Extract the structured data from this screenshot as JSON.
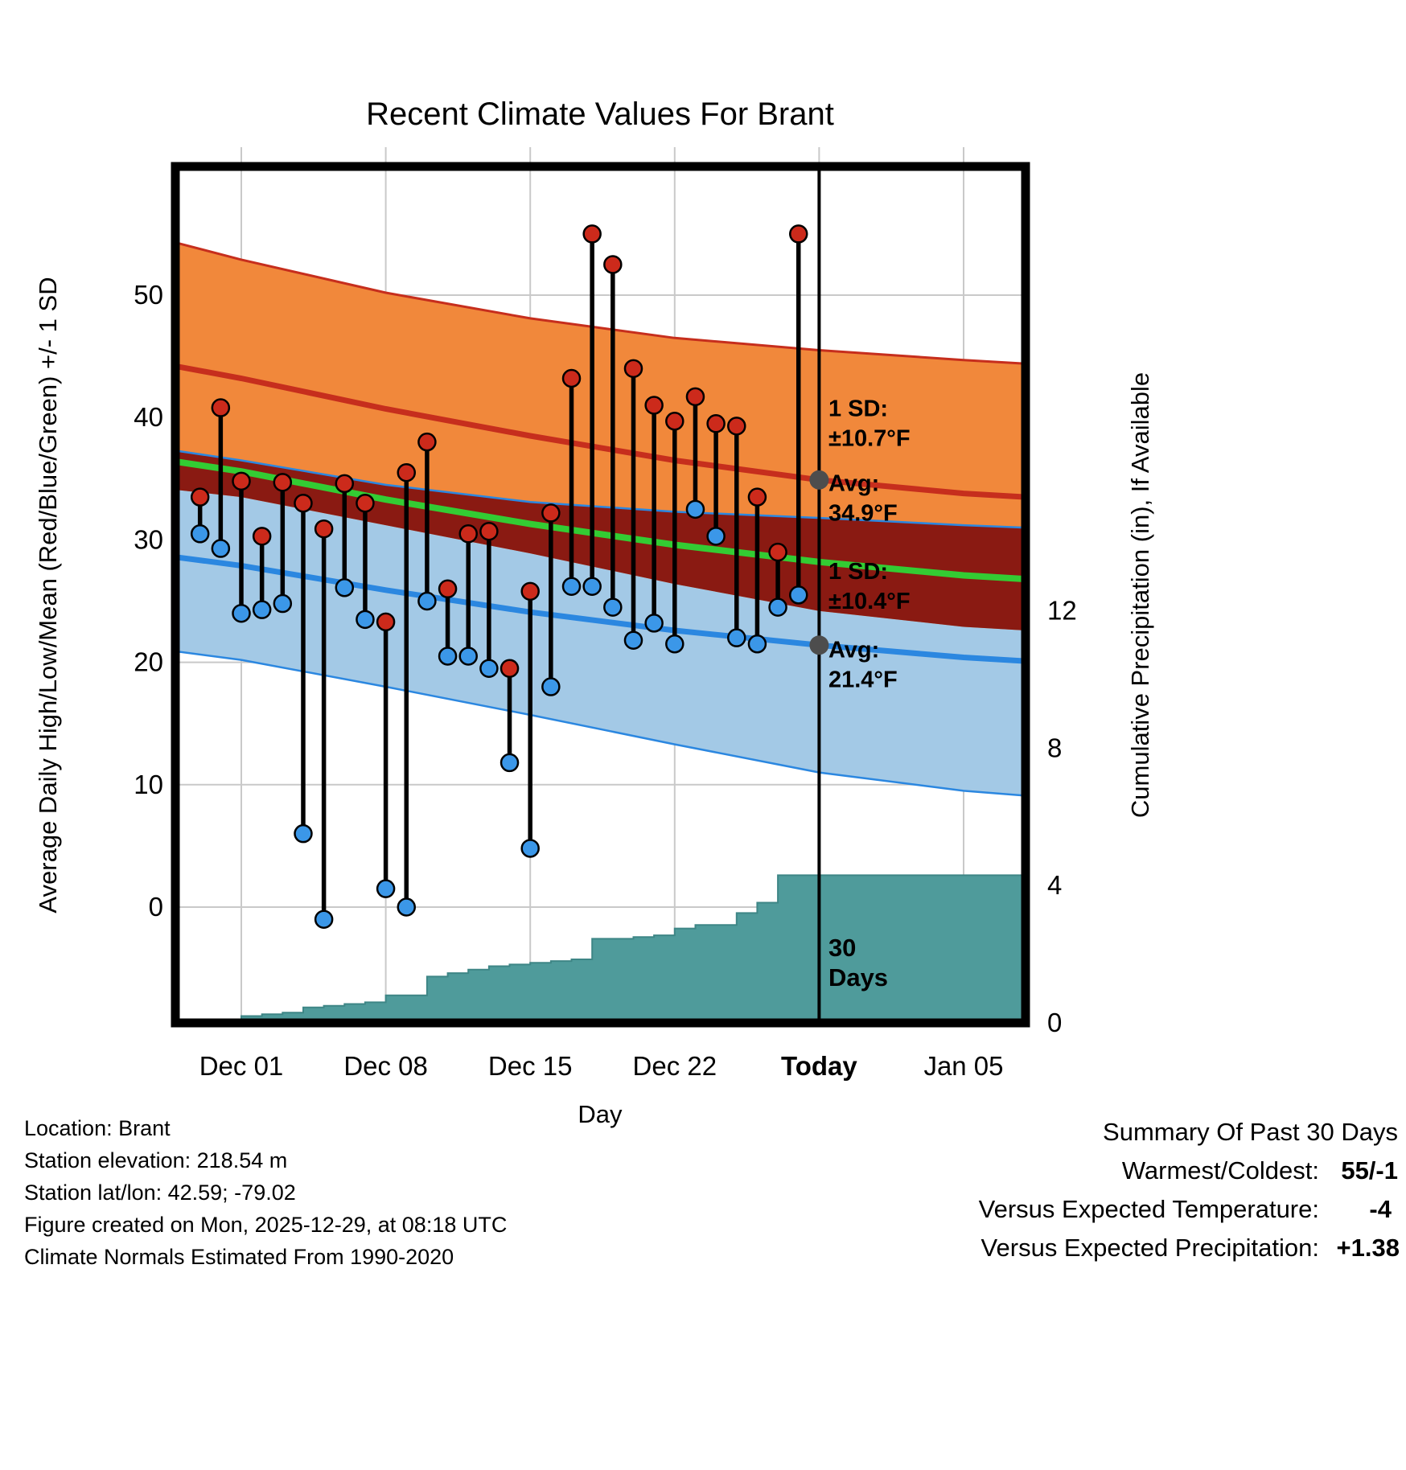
{
  "title": "Recent Climate Values For Brant",
  "axes": {
    "x_label": "Day",
    "left_label": "Average Daily High/Low/Mean (Red/Blue/Green) +/- 1 SD",
    "right_label": "Cumulative Precipitation (in), If Available",
    "x_ticks": [
      {
        "day": 0,
        "label": "Dec 01",
        "bold": false
      },
      {
        "day": 7,
        "label": "Dec 08",
        "bold": false
      },
      {
        "day": 14,
        "label": "Dec 15",
        "bold": false
      },
      {
        "day": 21,
        "label": "Dec 22",
        "bold": false
      },
      {
        "day": 28,
        "label": "Today",
        "bold": true
      },
      {
        "day": 35,
        "label": "Jan 05",
        "bold": false
      }
    ],
    "y_ticks_left": [
      0,
      10,
      20,
      30,
      40,
      50
    ],
    "y_ticks_right": [
      0,
      4,
      8,
      12
    ],
    "x_domain_days": [
      -3.2,
      38
    ],
    "temp_ylim": [
      -9.5,
      60.5
    ],
    "precip_ylim": [
      0,
      24.9
    ],
    "grid": true
  },
  "colors": {
    "high_band": "#F1883B",
    "high_line": "#C62E1D",
    "low_band": "#A3C9E6",
    "low_line": "#2B87E0",
    "overlap_band": "#8A1A12",
    "mean_line": "#33CC33",
    "precip_fill": "#4F9B9B",
    "precip_edge": "#3E8686",
    "high_dot": "#CC2A1B",
    "low_dot": "#3B97E8",
    "stem": "#000000",
    "grid": "#C9C9C9",
    "today_line": "#000000",
    "marker_gray": "#4D4D4D",
    "annotation_gray": "#7B7B7B",
    "frame": "#000000"
  },
  "chart_data": [
    {
      "type": "scatter",
      "name": "daily_high_low_observations",
      "x_unit": "days_from_Dec01",
      "note": "vertical black stems, red dot = daily high (F), blue dot = daily low (F)",
      "points": [
        {
          "day": -2,
          "high": 33.5,
          "low": 30.5
        },
        {
          "day": -1,
          "high": 40.8,
          "low": 29.3
        },
        {
          "day": 0,
          "high": 34.8,
          "low": 24.0
        },
        {
          "day": 1,
          "high": 30.3,
          "low": 24.3
        },
        {
          "day": 2,
          "high": 34.7,
          "low": 24.8
        },
        {
          "day": 3,
          "high": 33.0,
          "low": 6.0
        },
        {
          "day": 4,
          "high": 30.9,
          "low": -1.0
        },
        {
          "day": 5,
          "high": 34.6,
          "low": 26.1
        },
        {
          "day": 6,
          "high": 33.0,
          "low": 23.5
        },
        {
          "day": 7,
          "high": 23.3,
          "low": 1.5
        },
        {
          "day": 8,
          "high": 35.5,
          "low": 0.0
        },
        {
          "day": 9,
          "high": 38.0,
          "low": 25.0
        },
        {
          "day": 10,
          "high": 26.0,
          "low": 20.5
        },
        {
          "day": 11,
          "high": 30.5,
          "low": 20.5
        },
        {
          "day": 12,
          "high": 30.7,
          "low": 19.5
        },
        {
          "day": 13,
          "high": 19.5,
          "low": 11.8
        },
        {
          "day": 14,
          "high": 25.8,
          "low": 4.8
        },
        {
          "day": 15,
          "high": 32.2,
          "low": 18.0
        },
        {
          "day": 16,
          "high": 43.2,
          "low": 26.2
        },
        {
          "day": 17,
          "high": 55.0,
          "low": 26.2
        },
        {
          "day": 18,
          "high": 52.5,
          "low": 24.5
        },
        {
          "day": 19,
          "high": 44.0,
          "low": 21.8
        },
        {
          "day": 20,
          "high": 41.0,
          "low": 23.2
        },
        {
          "day": 21,
          "high": 39.7,
          "low": 21.5
        },
        {
          "day": 22,
          "high": 41.7,
          "low": 32.5
        },
        {
          "day": 23,
          "high": 39.5,
          "low": 30.3
        },
        {
          "day": 24,
          "high": 39.3,
          "low": 22.0
        },
        {
          "day": 25,
          "high": 33.5,
          "low": 21.5
        },
        {
          "day": 26,
          "high": 29.0,
          "low": 24.5
        },
        {
          "day": 27,
          "high": 55.0,
          "low": 25.5
        }
      ]
    },
    {
      "type": "line",
      "name": "climate_normals_1990_2020",
      "x_unit": "days_from_Dec01",
      "series": [
        {
          "name": "high_plus_1sd",
          "points": [
            [
              -3.2,
              54.3
            ],
            [
              0,
              52.9
            ],
            [
              7,
              50.2
            ],
            [
              14,
              48.1
            ],
            [
              21,
              46.5
            ],
            [
              28,
              45.5
            ],
            [
              35,
              44.7
            ],
            [
              38,
              44.4
            ]
          ]
        },
        {
          "name": "high_avg",
          "points": [
            [
              -3.2,
              44.2
            ],
            [
              0,
              43.2
            ],
            [
              7,
              40.7
            ],
            [
              14,
              38.5
            ],
            [
              21,
              36.5
            ],
            [
              28,
              34.9
            ],
            [
              35,
              33.8
            ],
            [
              38,
              33.5
            ]
          ]
        },
        {
          "name": "high_minus_1sd",
          "points": [
            [
              -3.2,
              34.1
            ],
            [
              0,
              33.5
            ],
            [
              7,
              31.2
            ],
            [
              14,
              28.9
            ],
            [
              21,
              26.4
            ],
            [
              28,
              24.2
            ],
            [
              35,
              22.9
            ],
            [
              38,
              22.6
            ]
          ]
        },
        {
          "name": "low_plus_1sd",
          "points": [
            [
              -3.2,
              37.3
            ],
            [
              0,
              36.5
            ],
            [
              7,
              34.5
            ],
            [
              14,
              33.1
            ],
            [
              21,
              32.3
            ],
            [
              28,
              31.8
            ],
            [
              35,
              31.2
            ],
            [
              38,
              31.0
            ]
          ]
        },
        {
          "name": "low_avg",
          "points": [
            [
              -3.2,
              28.6
            ],
            [
              0,
              27.9
            ],
            [
              7,
              25.9
            ],
            [
              14,
              24.1
            ],
            [
              21,
              22.6
            ],
            [
              28,
              21.4
            ],
            [
              35,
              20.4
            ],
            [
              38,
              20.1
            ]
          ]
        },
        {
          "name": "low_minus_1sd",
          "points": [
            [
              -3.2,
              20.9
            ],
            [
              0,
              20.2
            ],
            [
              7,
              18.0
            ],
            [
              14,
              15.7
            ],
            [
              21,
              13.3
            ],
            [
              28,
              11.0
            ],
            [
              35,
              9.5
            ],
            [
              38,
              9.1
            ]
          ]
        },
        {
          "name": "mean_avg",
          "points": [
            [
              -3.2,
              36.4
            ],
            [
              0,
              35.6
            ],
            [
              7,
              33.3
            ],
            [
              14,
              31.3
            ],
            [
              21,
              29.6
            ],
            [
              28,
              28.2
            ],
            [
              35,
              27.1
            ],
            [
              38,
              26.8
            ]
          ]
        }
      ]
    },
    {
      "type": "area",
      "name": "cumulative_precipitation_in",
      "x_unit": "days_from_Dec01",
      "steps": [
        [
          -3.2,
          0
        ],
        [
          -2,
          0.05
        ],
        [
          -1,
          0.1
        ],
        [
          0,
          0.2
        ],
        [
          1,
          0.25
        ],
        [
          2,
          0.3
        ],
        [
          3,
          0.45
        ],
        [
          4,
          0.5
        ],
        [
          5,
          0.55
        ],
        [
          6,
          0.6
        ],
        [
          7,
          0.8
        ],
        [
          9,
          1.35
        ],
        [
          10,
          1.45
        ],
        [
          11,
          1.55
        ],
        [
          12,
          1.65
        ],
        [
          13,
          1.7
        ],
        [
          14,
          1.75
        ],
        [
          15,
          1.8
        ],
        [
          16,
          1.85
        ],
        [
          17,
          2.45
        ],
        [
          19,
          2.5
        ],
        [
          20,
          2.55
        ],
        [
          21,
          2.75
        ],
        [
          22,
          2.85
        ],
        [
          24,
          3.2
        ],
        [
          25,
          3.5
        ],
        [
          26,
          4.3
        ],
        [
          38,
          4.3
        ]
      ]
    }
  ],
  "today": {
    "day": 28,
    "avg_high_f": 34.9,
    "avg_low_f": 21.4,
    "high_sd_f": 10.7,
    "low_sd_f": 10.4,
    "window_label": "30 Days"
  },
  "markers": [
    {
      "name": "today-avg-high-marker",
      "day": 28,
      "temp": 34.9
    },
    {
      "name": "today-avg-low-marker",
      "day": 28,
      "temp": 21.4
    }
  ],
  "annotations": [
    {
      "name": "high-sd-label",
      "day": 28.45,
      "temp": 40.1,
      "color": "#7B7B7B",
      "bold": true,
      "size": 29,
      "lines": [
        "1 SD:",
        "±10.7°F"
      ]
    },
    {
      "name": "high-avg-label",
      "day": 28.45,
      "temp": 34.0,
      "color": "#7B7B7B",
      "bold": true,
      "size": 29,
      "lines": [
        "Avg:",
        "34.9°F"
      ]
    },
    {
      "name": "low-sd-label",
      "day": 28.45,
      "temp": 26.8,
      "color": "#7B7B7B",
      "bold": true,
      "size": 29,
      "lines": [
        "1 SD:",
        "±10.4°F"
      ]
    },
    {
      "name": "low-avg-label",
      "day": 28.45,
      "temp": 20.4,
      "color": "#7B7B7B",
      "bold": true,
      "size": 29,
      "lines": [
        "Avg:",
        "21.4°F"
      ]
    },
    {
      "name": "thirty-days-label",
      "day": 28.45,
      "temp": -4.0,
      "color": "#000000",
      "bold": true,
      "size": 31,
      "lines": [
        "30",
        "Days"
      ]
    }
  ],
  "footer": {
    "left_lines": [
      "Location: Brant",
      "Station elevation: 218.54 m",
      "Station lat/lon: 42.59; -79.02",
      "Figure created on Mon, 2025-12-29, at 08:18 UTC",
      "Climate Normals Estimated From 1990-2020"
    ]
  },
  "summary": {
    "title": "Summary Of Past 30 Days",
    "rows": [
      {
        "label": "Warmest/Coldest:",
        "value": "55/-1",
        "color": "#000000"
      },
      {
        "label": "Versus Expected Temperature:",
        "value": "-4",
        "color": "#3D9BF5"
      },
      {
        "label": "Versus Expected Precipitation:",
        "value": "+1.38",
        "color": "#00C13A"
      }
    ]
  }
}
